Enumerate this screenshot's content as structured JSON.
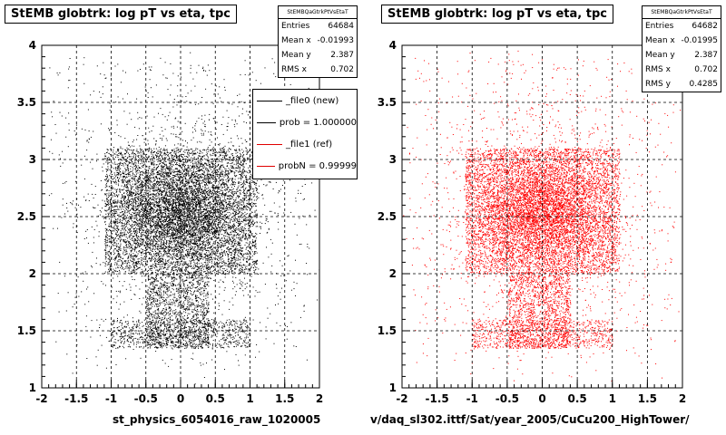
{
  "chart_data": [
    {
      "type": "scatter",
      "title": "StEMB globtrk: log pT vs eta, tpc",
      "xlabel": "st_physics_6054016_raw_1020005",
      "ylabel": "",
      "xlim": [
        -2,
        2
      ],
      "ylim": [
        1,
        4
      ],
      "xticks": [
        "-2",
        "-1.5",
        "-1",
        "-0.5",
        "0",
        "0.5",
        "1",
        "1.5",
        "2"
      ],
      "yticks": [
        "1",
        "1.5",
        "2",
        "2.5",
        "3",
        "3.5",
        "4"
      ],
      "grid": true,
      "marker_color": "#000000",
      "stats": {
        "name": "StEMBQaGtrkPtVsEtaT",
        "rows": [
          {
            "label": "Entries",
            "value": "64684"
          },
          {
            "label": "Mean x",
            "value": "-0.01993"
          },
          {
            "label": "Mean y",
            "value": "2.387"
          },
          {
            "label": "RMS x",
            "value": "0.702"
          }
        ]
      },
      "legend": {
        "placement": "top-right",
        "entries": [
          {
            "label": "_file0 (new)",
            "color": "#000000"
          },
          {
            "label": "prob = 1.000000",
            "color": "#000000"
          },
          {
            "label": "_file1 (ref)",
            "color": "#e00000"
          },
          {
            "label": "probN = 0.99999",
            "color": "#e00000"
          }
        ]
      },
      "distribution": {
        "core": {
          "eta_range": [
            -1.1,
            1.1
          ],
          "log_pt_range": [
            2.0,
            3.1
          ]
        },
        "stem": {
          "eta_range": [
            -0.5,
            0.4
          ],
          "log_pt_range": [
            1.35,
            2.0
          ]
        },
        "floor": {
          "eta_range": [
            -1.0,
            1.0
          ],
          "log_pt_range": [
            1.35,
            1.6
          ]
        },
        "halo": {
          "eta_range": [
            -1.9,
            1.9
          ],
          "log_pt_range": [
            1.2,
            3.9
          ]
        }
      }
    },
    {
      "type": "scatter",
      "title": "StEMB globtrk: log pT vs eta, tpc",
      "xlabel": "v/daq_sl302.ittf/Sat/year_2005/CuCu200_HighTower/",
      "ylabel": "",
      "xlim": [
        -2,
        2
      ],
      "ylim": [
        1,
        4
      ],
      "xticks": [
        "-2",
        "-1.5",
        "-1",
        "-0.5",
        "0",
        "0.5",
        "1",
        "1.5",
        "2"
      ],
      "yticks": [
        "1",
        "1.5",
        "2",
        "2.5",
        "3",
        "3.5",
        "4"
      ],
      "grid": true,
      "marker_color": "#ff0000",
      "stats": {
        "name": "StEMBQaGtrkPtVsEtaT",
        "rows": [
          {
            "label": "Entries",
            "value": "64682"
          },
          {
            "label": "Mean x",
            "value": "-0.01995"
          },
          {
            "label": "Mean y",
            "value": "2.387"
          },
          {
            "label": "RMS x",
            "value": "0.702"
          },
          {
            "label": "RMS y",
            "value": "0.4285"
          }
        ]
      },
      "distribution": {
        "core": {
          "eta_range": [
            -1.1,
            1.1
          ],
          "log_pt_range": [
            2.0,
            3.1
          ]
        },
        "stem": {
          "eta_range": [
            -0.5,
            0.4
          ],
          "log_pt_range": [
            1.35,
            2.0
          ]
        },
        "floor": {
          "eta_range": [
            -1.0,
            1.0
          ],
          "log_pt_range": [
            1.35,
            1.6
          ]
        },
        "halo": {
          "eta_range": [
            -1.9,
            1.9
          ],
          "log_pt_range": [
            1.2,
            3.9
          ]
        }
      }
    }
  ]
}
